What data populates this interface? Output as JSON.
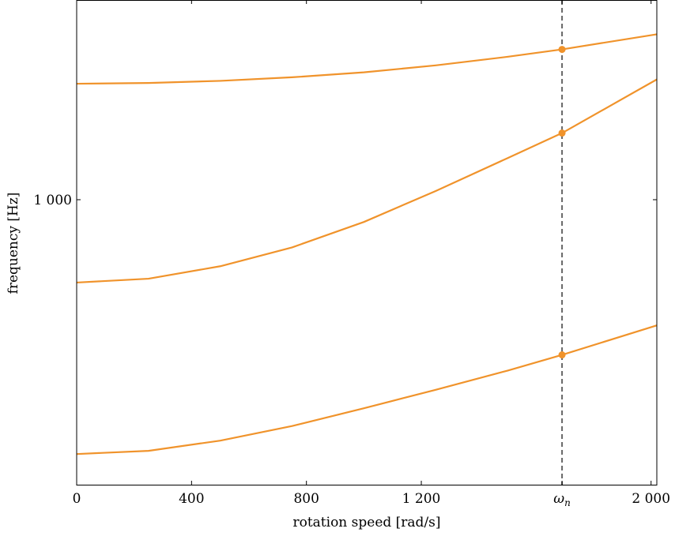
{
  "chart_data": {
    "type": "line",
    "xlabel": "rotation speed [rad/s]",
    "ylabel": "frequency [Hz]",
    "xlim": [
      0,
      2020
    ],
    "ylim_log": [
      540,
      1540
    ],
    "y_scale": "log",
    "x_ticks": [
      {
        "value": 0,
        "label": "0"
      },
      {
        "value": 400,
        "label": "400"
      },
      {
        "value": 800,
        "label": "800"
      },
      {
        "value": 1200,
        "label": "1 200"
      },
      {
        "value": 1690,
        "label": "ω_n"
      },
      {
        "value": 2000,
        "label": "2 000"
      }
    ],
    "y_ticks": [
      {
        "value": 1000,
        "label": "1 000"
      }
    ],
    "grid": false,
    "vline": {
      "x": 1690,
      "style": "dashed",
      "color": "#666666"
    },
    "line_color": "#f0932b",
    "series": [
      {
        "x": [
          0,
          250,
          500,
          750,
          1000,
          1250,
          1500,
          1690,
          2020
        ],
        "y": [
          1285,
          1287,
          1293,
          1303,
          1317,
          1337,
          1362,
          1384,
          1430
        ]
      },
      {
        "x": [
          0,
          250,
          500,
          750,
          1000,
          1250,
          1500,
          1690,
          2020
        ],
        "y": [
          836,
          843,
          866,
          902,
          953,
          1019,
          1094,
          1155,
          1297
        ]
      },
      {
        "x": [
          0,
          250,
          500,
          750,
          1000,
          1250,
          1500,
          1690,
          2020
        ],
        "y": [
          577,
          581,
          594,
          613,
          637,
          663,
          691,
          715,
          762
        ]
      }
    ],
    "markers": [
      {
        "x": 1690,
        "y": 1384
      },
      {
        "x": 1690,
        "y": 1155
      },
      {
        "x": 1690,
        "y": 715
      }
    ]
  }
}
